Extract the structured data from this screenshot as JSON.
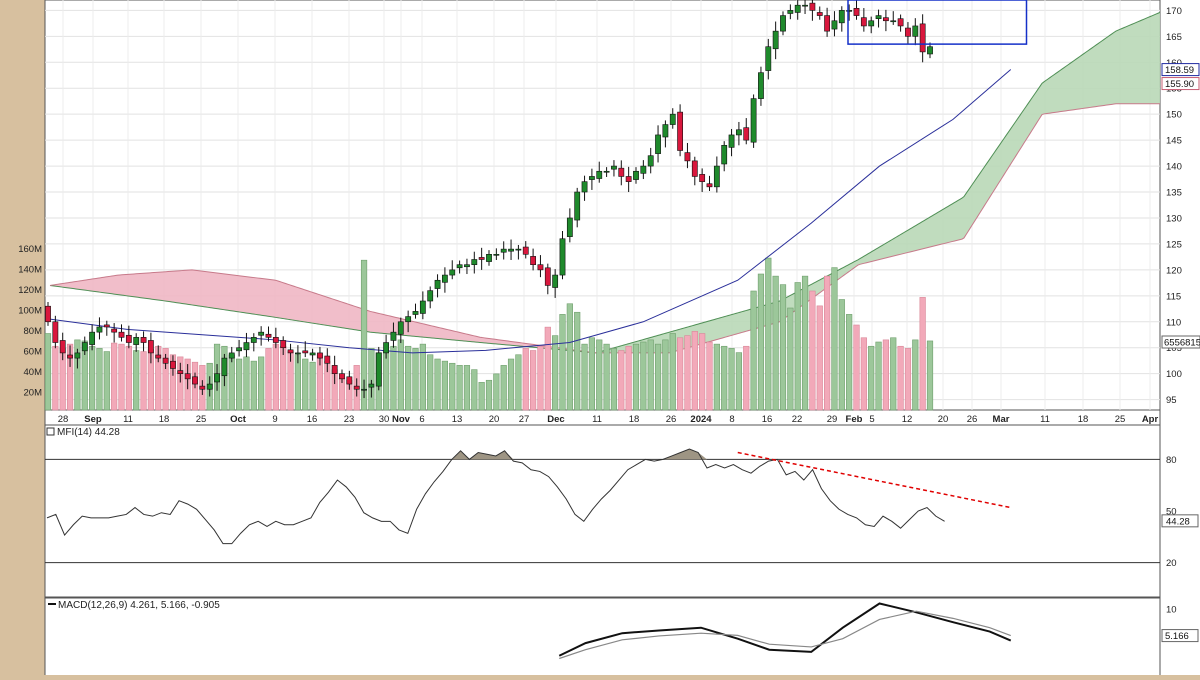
{
  "chart_data": [
    {
      "type": "candlestick",
      "panel": "price",
      "ylim": [
        93,
        172
      ],
      "y_ticks": [
        95,
        100,
        105,
        110,
        115,
        120,
        125,
        130,
        135,
        140,
        145,
        150,
        155,
        160,
        165,
        170
      ],
      "x_labels": [
        "28",
        "Sep",
        "11",
        "18",
        "25",
        "Oct",
        "9",
        "16",
        "23",
        "30",
        "Nov",
        "6",
        "13",
        "20",
        "27",
        "Dec",
        "11",
        "18",
        "26",
        "2024",
        "8",
        "16",
        "22",
        "29",
        "Feb",
        "5",
        "12",
        "20",
        "26",
        "Mar",
        "11",
        "18",
        "25",
        "Apr"
      ],
      "grid": true,
      "price_tags": [
        "158.59",
        "155.90"
      ],
      "volume_tag": "6556815",
      "volume_axis_labels": [
        "160M",
        "140M",
        "120M",
        "100M",
        "80M",
        "60M",
        "40M",
        "20M"
      ],
      "volume_ylim": [
        0,
        160
      ],
      "close": [
        110,
        106,
        104,
        103,
        104,
        106,
        108,
        109,
        109,
        108,
        107,
        106,
        107,
        106,
        104,
        103,
        102,
        101,
        100,
        99,
        98,
        97,
        98,
        100,
        103,
        104,
        105,
        106,
        107,
        108,
        107,
        106,
        105,
        104,
        104,
        104,
        104,
        103,
        102,
        100,
        99,
        98,
        97,
        97,
        98,
        104,
        106,
        108,
        110,
        111,
        112,
        114,
        116,
        118,
        119,
        120,
        121,
        121,
        122,
        122,
        123,
        123,
        124,
        124,
        124,
        123,
        121,
        120,
        117,
        119,
        126,
        130,
        135,
        137,
        138,
        139,
        139,
        140,
        138,
        137,
        139,
        140,
        142,
        146,
        148,
        150,
        143,
        141,
        138,
        137,
        136,
        140,
        144,
        146,
        147,
        145,
        153,
        158,
        163,
        166,
        169,
        170,
        171,
        171,
        170,
        169,
        166,
        168,
        170,
        170,
        169,
        167,
        168,
        169,
        168,
        168,
        167,
        165,
        167,
        162,
        163
      ],
      "volume_peaks": [
        {
          "x": "Nov 1",
          "value": 141
        },
        {
          "x": "Jan 19",
          "value": 143
        },
        {
          "x": "Jan 16",
          "value": 128
        }
      ],
      "series": [
        {
          "name": "",
          "kind": "SMA",
          "color": "#2a2f9a",
          "x": [
            "Aug 24",
            "Sep 8",
            "Sep 22",
            "Oct 6",
            "Oct 20",
            "Nov 1",
            "Nov 15",
            "Dec 1",
            "Dec 15",
            "Jan 2",
            "Jan 16",
            "Jan 29",
            "Feb 12",
            "Feb 23"
          ],
          "y": [
            110.5,
            108.5,
            107.5,
            106.5,
            105,
            104,
            104.5,
            106,
            110,
            118,
            129,
            140,
            149,
            158.6
          ]
        },
        {
          "name": "",
          "kind": "cloud-span-a",
          "color": "#4f8f55",
          "x": [
            "Aug 24",
            "Sep 15",
            "Oct 5",
            "Oct 24",
            "Nov 14",
            "Dec 6",
            "Dec 20",
            "Jan 10",
            "Jan 25",
            "Feb 14",
            "Feb 29",
            "Mar 14",
            "Mar 28"
          ],
          "y": [
            117,
            114,
            111,
            108,
            106,
            104,
            108,
            114,
            122,
            134,
            156,
            166,
            172
          ]
        },
        {
          "name": "",
          "kind": "cloud-span-b",
          "color": "#c77a8a",
          "x": [
            "Aug 24",
            "Sep 6",
            "Sep 20",
            "Oct 6",
            "Oct 24",
            "Nov 14",
            "Dec 6",
            "Dec 20",
            "Jan 10",
            "Jan 25",
            "Feb 14",
            "Feb 29",
            "Mar 14",
            "Mar 28"
          ],
          "y": [
            117,
            119,
            120,
            118,
            112,
            107,
            104,
            104,
            110,
            121,
            126,
            150,
            152,
            152
          ]
        }
      ],
      "annotations": [
        {
          "type": "rectangle",
          "color": "#1530c8",
          "x_start": "Jan 23",
          "x_end": "Feb 26",
          "y_top": 172,
          "y_bottom": 163.5
        }
      ]
    },
    {
      "type": "line",
      "panel": "indicator",
      "title": "MFI(14) 44.28",
      "current_value": "44.28",
      "ylim": [
        0,
        100
      ],
      "y_ticks": [
        20,
        50,
        80
      ],
      "reference_lines": [
        20,
        80
      ],
      "overbought_fill_color": "#9e9584",
      "series": [
        {
          "name": "MFI(14)",
          "color": "#333333",
          "values": [
            46,
            48,
            36,
            42,
            47,
            46,
            46,
            46,
            47,
            48,
            52,
            48,
            47,
            49,
            48,
            56,
            54,
            51,
            45,
            39,
            31,
            31,
            37,
            42,
            44,
            41,
            44,
            42,
            42,
            44,
            46,
            55,
            61,
            68,
            64,
            58,
            49,
            46,
            44,
            44,
            39,
            37,
            51,
            60,
            67,
            73,
            80,
            85,
            80,
            84,
            83,
            82,
            85,
            79,
            78,
            74,
            73,
            70,
            64,
            57,
            48,
            44,
            51,
            57,
            62,
            68,
            74,
            77,
            80,
            79,
            80,
            82,
            84,
            86,
            84,
            75,
            77,
            75,
            77,
            74,
            72,
            76,
            79,
            80,
            71,
            73,
            68,
            74,
            63,
            56,
            51,
            48,
            46,
            42,
            41,
            47,
            44,
            40,
            45,
            50,
            52,
            47,
            44
          ]
        }
      ],
      "annotations": [
        {
          "type": "trendline",
          "color": "#e00000",
          "style": "dashed",
          "x_start": "Jan 2",
          "y_start": 84,
          "x_end": "Feb 23",
          "y_end": 52
        }
      ]
    },
    {
      "type": "line",
      "panel": "indicator",
      "title": "MACD(12,26,9) 4.261, 5.166, -0.905",
      "ylim": [
        -2,
        12
      ],
      "y_ticks": [
        10,
        5
      ],
      "value_tag": "5.166",
      "series": [
        {
          "name": "MACD",
          "color": "#111111",
          "x": [
            "Nov 29",
            "Dec 4",
            "Dec 11",
            "Dec 18",
            "Dec 26",
            "Jan 2",
            "Jan 8",
            "Jan 16",
            "Jan 22",
            "Jan 29",
            "Feb 5",
            "Feb 12",
            "Feb 19",
            "Feb 23"
          ],
          "y": [
            1.5,
            3.8,
            5.6,
            6.1,
            6.6,
            4.6,
            2.6,
            2.2,
            6.6,
            11,
            9.4,
            7.6,
            5.9,
            4.261
          ]
        },
        {
          "name": "Signal",
          "color": "#888888",
          "x": [
            "Nov 29",
            "Dec 4",
            "Dec 11",
            "Dec 18",
            "Dec 26",
            "Jan 2",
            "Jan 8",
            "Jan 16",
            "Jan 22",
            "Jan 29",
            "Feb 5",
            "Feb 12",
            "Feb 19",
            "Feb 23"
          ],
          "y": [
            1,
            2.6,
            4.4,
            5.1,
            5.6,
            5.2,
            3.6,
            3.1,
            4.6,
            8.1,
            9.6,
            8.3,
            6.6,
            5.166
          ]
        }
      ]
    }
  ]
}
